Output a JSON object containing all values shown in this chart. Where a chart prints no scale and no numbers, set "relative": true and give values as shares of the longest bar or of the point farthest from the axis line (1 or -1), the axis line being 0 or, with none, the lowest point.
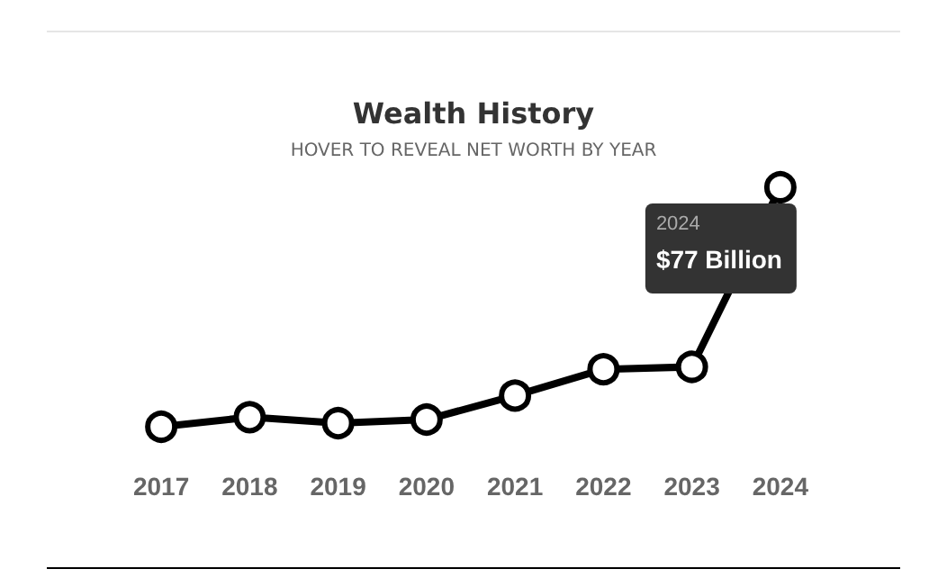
{
  "chart_data": {
    "type": "line",
    "title": "Wealth History",
    "subtitle": "HOVER TO REVEAL NET WORTH BY YEAR",
    "categories": [
      "2017",
      "2018",
      "2019",
      "2020",
      "2021",
      "2022",
      "2023",
      "2024"
    ],
    "relative": true,
    "series": [
      {
        "color": "#000000",
        "values": [
          0,
          0.04,
          0.015,
          0.03,
          0.13,
          0.24,
          0.25,
          1
        ]
      }
    ],
    "marker": "circle",
    "line_style": "solid",
    "grid": false,
    "annotations": [
      "2024",
      "$77 Billion"
    ]
  }
}
